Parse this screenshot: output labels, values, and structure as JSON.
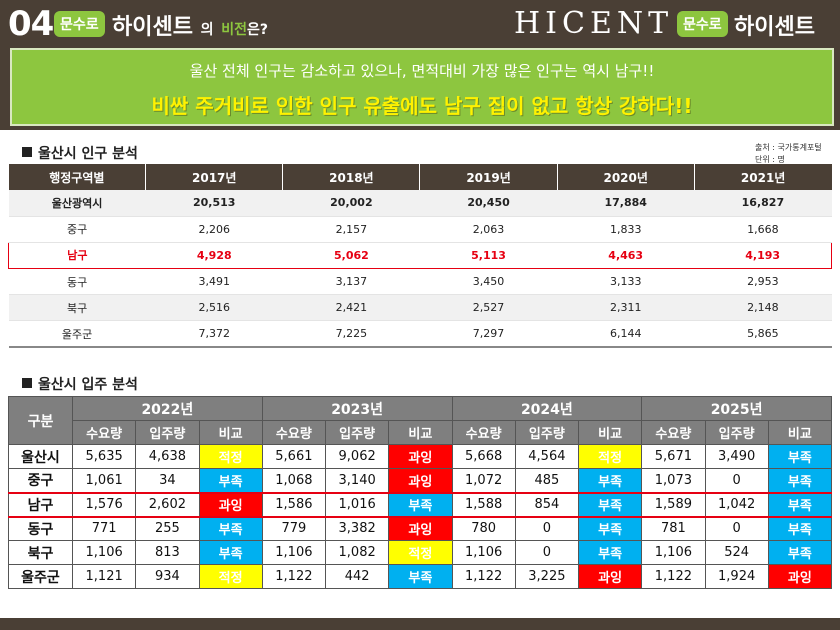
{
  "header": {
    "number": "04",
    "badge_left": "문수로",
    "title_main": "하이센트",
    "title_particle": "의",
    "title_vision": "비전",
    "title_suffix": "은?",
    "brand_en": "HICENT",
    "badge_right": "문수로",
    "brand_ko": "하이센트",
    "banner_line1": "울산 전체 인구는 감소하고 있으나, 면적대비 가장 많은 인구는 역시 남구!!",
    "banner_line2": "비싼 주거비로 인한 인구 유출에도 남구 집이 없고 항상 강하다!!"
  },
  "population": {
    "section_title": "울산시 인구 분석",
    "source": "출처 : 국가통계포털",
    "unit": "단위 : 명",
    "columns": [
      "행정구역별",
      "2017년",
      "2018년",
      "2019년",
      "2020년",
      "2021년"
    ],
    "rows": [
      [
        "울산광역시",
        "20,513",
        "20,002",
        "20,450",
        "17,884",
        "16,827"
      ],
      [
        "중구",
        "2,206",
        "2,157",
        "2,063",
        "1,833",
        "1,668"
      ],
      [
        "남구",
        "4,928",
        "5,062",
        "5,113",
        "4,463",
        "4,193"
      ],
      [
        "동구",
        "3,491",
        "3,137",
        "3,450",
        "3,133",
        "2,953"
      ],
      [
        "북구",
        "2,516",
        "2,421",
        "2,527",
        "2,311",
        "2,148"
      ],
      [
        "울주군",
        "7,372",
        "7,225",
        "7,297",
        "6,144",
        "5,865"
      ]
    ]
  },
  "movein": {
    "section_title": "울산시 입주 분석",
    "gubun": "구분",
    "years": [
      "2022년",
      "2023년",
      "2024년",
      "2025년"
    ],
    "sub_headers": [
      "수요량",
      "입주량",
      "비교"
    ],
    "colors": {
      "적정": "#ffff00",
      "과잉": "#ff0000",
      "부족": "#00b0f0"
    },
    "rows": [
      {
        "name": "울산시",
        "cells": [
          [
            "5,635",
            "4,638",
            "적정"
          ],
          [
            "5,661",
            "9,062",
            "과잉"
          ],
          [
            "5,668",
            "4,564",
            "적정"
          ],
          [
            "5,671",
            "3,490",
            "부족"
          ]
        ]
      },
      {
        "name": "중구",
        "cells": [
          [
            "1,061",
            "34",
            "부족"
          ],
          [
            "1,068",
            "3,140",
            "과잉"
          ],
          [
            "1,072",
            "485",
            "부족"
          ],
          [
            "1,073",
            "0",
            "부족"
          ]
        ]
      },
      {
        "name": "남구",
        "cells": [
          [
            "1,576",
            "2,602",
            "과잉"
          ],
          [
            "1,586",
            "1,016",
            "부족"
          ],
          [
            "1,588",
            "854",
            "부족"
          ],
          [
            "1,589",
            "1,042",
            "부족"
          ]
        ]
      },
      {
        "name": "동구",
        "cells": [
          [
            "771",
            "255",
            "부족"
          ],
          [
            "779",
            "3,382",
            "과잉"
          ],
          [
            "780",
            "0",
            "부족"
          ],
          [
            "781",
            "0",
            "부족"
          ]
        ]
      },
      {
        "name": "북구",
        "cells": [
          [
            "1,106",
            "813",
            "부족"
          ],
          [
            "1,106",
            "1,082",
            "적정"
          ],
          [
            "1,106",
            "0",
            "부족"
          ],
          [
            "1,106",
            "524",
            "부족"
          ]
        ]
      },
      {
        "name": "울주군",
        "cells": [
          [
            "1,121",
            "934",
            "적정"
          ],
          [
            "1,122",
            "442",
            "부족"
          ],
          [
            "1,122",
            "3,225",
            "과잉"
          ],
          [
            "1,122",
            "1,924",
            "과잉"
          ]
        ]
      }
    ]
  }
}
